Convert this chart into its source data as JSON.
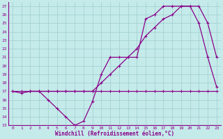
{
  "xlabel": "Windchill (Refroidissement éolien,°C)",
  "bg_color": "#c5eaea",
  "grid_color": "#9ecece",
  "line_color": "#880088",
  "xlim": [
    -0.5,
    23.5
  ],
  "ylim": [
    13,
    27.5
  ],
  "yticks": [
    13,
    14,
    15,
    16,
    17,
    18,
    19,
    20,
    21,
    22,
    23,
    24,
    25,
    26,
    27
  ],
  "xticks": [
    0,
    1,
    2,
    3,
    4,
    5,
    6,
    7,
    8,
    9,
    10,
    11,
    12,
    13,
    14,
    15,
    16,
    17,
    18,
    19,
    20,
    21,
    22,
    23
  ],
  "line_flat_x": [
    0,
    1,
    2,
    3,
    4,
    5,
    6,
    7,
    8,
    9,
    10,
    11,
    12,
    13,
    14,
    15,
    16,
    17,
    18,
    19,
    20,
    21,
    22,
    23
  ],
  "line_flat_y": [
    17,
    17,
    17,
    17,
    17,
    17,
    17,
    17,
    17,
    17,
    17,
    17,
    17,
    17,
    17,
    17,
    17,
    17,
    17,
    17,
    17,
    17,
    17,
    17
  ],
  "line_dip_x": [
    0,
    1,
    2,
    3,
    4,
    5,
    6,
    7,
    8,
    9,
    10,
    11,
    12,
    13,
    14,
    15,
    16,
    17,
    18,
    19,
    20,
    21,
    22,
    23
  ],
  "line_dip_y": [
    17,
    16.8,
    17,
    17,
    16,
    15,
    14,
    13,
    13.5,
    15.8,
    19,
    21,
    21,
    21,
    21,
    25.5,
    26,
    27,
    27,
    27,
    27,
    25,
    21,
    17.5
  ],
  "line_diag_x": [
    2,
    3,
    4,
    5,
    6,
    7,
    8,
    9,
    10,
    11,
    12,
    13,
    14,
    15,
    16,
    17,
    18,
    19,
    20,
    21,
    22,
    23
  ],
  "line_diag_y": [
    17,
    17,
    17,
    17,
    17,
    17,
    17,
    17,
    18,
    19,
    20,
    21,
    22,
    23.5,
    24.5,
    25.5,
    26,
    27,
    27,
    27,
    25,
    21
  ]
}
